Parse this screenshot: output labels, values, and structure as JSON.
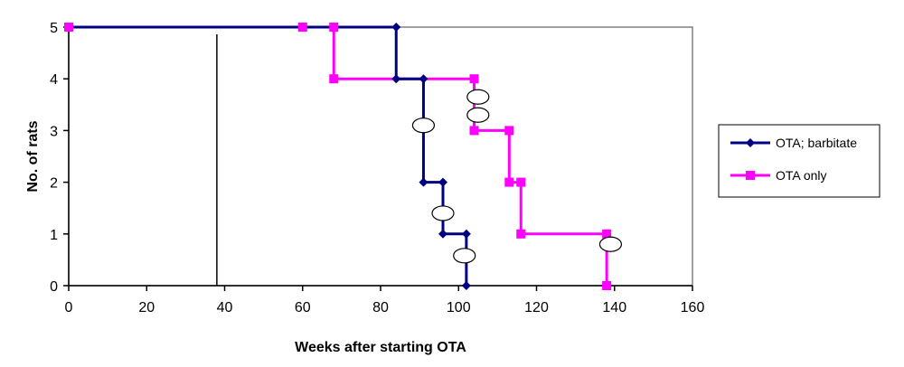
{
  "chart_data": {
    "type": "line",
    "title": "",
    "xlabel": "Weeks after starting OTA",
    "ylabel": "No. of rats",
    "xlim": [
      0,
      160
    ],
    "ylim": [
      0,
      5
    ],
    "xticks": [
      0,
      20,
      40,
      60,
      80,
      100,
      120,
      140,
      160
    ],
    "yticks": [
      0,
      1,
      2,
      3,
      4,
      5
    ],
    "grid": false,
    "legend_position": "right",
    "reference_line_x": 38,
    "series": [
      {
        "name": "OTA; barbitate",
        "color": "#000080",
        "marker": "diamond",
        "step_path": [
          [
            0,
            5
          ],
          [
            84,
            5
          ],
          [
            84,
            4
          ],
          [
            91,
            4
          ],
          [
            91,
            2
          ],
          [
            96,
            2
          ],
          [
            96,
            1
          ],
          [
            102,
            1
          ],
          [
            102,
            0
          ]
        ],
        "markers": [
          [
            84,
            5
          ],
          [
            84,
            4
          ],
          [
            91,
            4
          ],
          [
            91,
            2
          ],
          [
            96,
            2
          ],
          [
            96,
            1
          ],
          [
            102,
            1
          ],
          [
            102,
            0
          ]
        ]
      },
      {
        "name": "OTA only",
        "color": "#FF00FF",
        "marker": "square",
        "step_path": [
          [
            0,
            5
          ],
          [
            68,
            5
          ],
          [
            68,
            4
          ],
          [
            104,
            4
          ],
          [
            104,
            3
          ],
          [
            113,
            3
          ],
          [
            113,
            2
          ],
          [
            116,
            2
          ],
          [
            116,
            1
          ],
          [
            138,
            1
          ],
          [
            138,
            0
          ]
        ],
        "markers": [
          [
            0,
            5
          ],
          [
            60,
            5
          ],
          [
            68,
            5
          ],
          [
            68,
            4
          ],
          [
            104,
            4
          ],
          [
            104,
            3
          ],
          [
            113,
            3
          ],
          [
            113,
            2
          ],
          [
            116,
            2
          ],
          [
            116,
            1
          ],
          [
            138,
            1
          ],
          [
            138,
            0
          ]
        ]
      }
    ],
    "censor_marks": [
      [
        91,
        3.1
      ],
      [
        96,
        1.4
      ],
      [
        101.5,
        0.58
      ],
      [
        105,
        3.65
      ],
      [
        105,
        3.3
      ],
      [
        139,
        0.8
      ]
    ]
  }
}
